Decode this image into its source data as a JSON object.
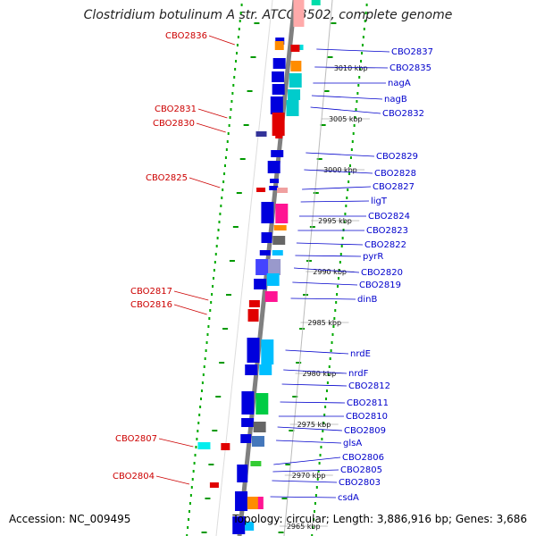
{
  "title": "Clostridium botulinum A str. ATCC 3502, complete genome",
  "accession": "Accession: NC_009495",
  "summary": "Topology: circular; Length: 3,886,916 bp; Genes: 3,686",
  "ruler": [
    {
      "label": "3010 kbp",
      "pos": 3010
    },
    {
      "label": "3005 kbp",
      "pos": 3005
    },
    {
      "label": "3000 kbp",
      "pos": 3000
    },
    {
      "label": "2995 kbp",
      "pos": 2995
    },
    {
      "label": "2990 kbp",
      "pos": 2990
    },
    {
      "label": "2985 kbp",
      "pos": 2985
    },
    {
      "label": "2980 kbp",
      "pos": 2980
    },
    {
      "label": "2975 kbp",
      "pos": 2975
    },
    {
      "label": "2970 kbp",
      "pos": 2970
    },
    {
      "label": "2965 kbp",
      "pos": 2965
    }
  ],
  "right_labels": [
    "CBO2837",
    "CBO2835",
    "nagA",
    "nagB",
    "CBO2832",
    "CBO2829",
    "CBO2828",
    "CBO2827",
    "ligT",
    "CBO2824",
    "CBO2823",
    "CBO2822",
    "pyrR",
    "CBO2820",
    "CBO2819",
    "dinB",
    "nrdE",
    "nrdF",
    "CBO2812",
    "CBO2811",
    "CBO2810",
    "CBO2809",
    "glsA",
    "CBO2806",
    "CBO2805",
    "CBO2803",
    "csdA"
  ],
  "left_labels": [
    "CBO2836",
    "CBO2831",
    "CBO2830",
    "CBO2825",
    "CBO2817",
    "CBO2816",
    "CBO2807",
    "CBO2804"
  ],
  "colors": {
    "forward": "#0000dd",
    "reverse": "#e00000",
    "right_label": "#0000cc",
    "left_label": "#cc0000",
    "backbone": "#808080",
    "tick": "#00aa00"
  }
}
